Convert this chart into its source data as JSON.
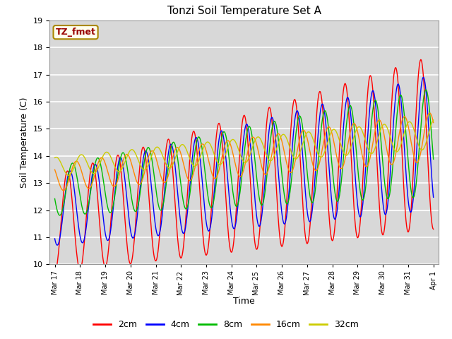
{
  "title": "Tonzi Soil Temperature Set A",
  "xlabel": "Time",
  "ylabel": "Soil Temperature (C)",
  "ylim": [
    10.0,
    19.0
  ],
  "yticks": [
    10.0,
    11.0,
    12.0,
    13.0,
    14.0,
    15.0,
    16.0,
    17.0,
    18.0,
    19.0
  ],
  "series_labels": [
    "2cm",
    "4cm",
    "8cm",
    "16cm",
    "32cm"
  ],
  "series_colors": [
    "#ff0000",
    "#0000ff",
    "#00bb00",
    "#ff8800",
    "#cccc00"
  ],
  "annotation_text": "TZ_fmet",
  "annotation_color": "#990000",
  "annotation_bg": "#ffffee",
  "annotation_border": "#aa8800",
  "background_color": "#d8d8d8",
  "grid_color": "#ffffff",
  "xtick_labels": [
    "Mar 17",
    "Mar 18",
    "Mar 19",
    "Mar 20",
    "Mar 21",
    "Mar 22",
    "Mar 23",
    "Mar 24",
    "Mar 25",
    "Mar 26",
    "Mar 27",
    "Mar 28",
    "Mar 29",
    "Mar 30",
    "Mar 31",
    "Apr 1"
  ],
  "xtick_positions": [
    0,
    1,
    2,
    3,
    4,
    5,
    6,
    7,
    8,
    9,
    10,
    11,
    12,
    13,
    14,
    15
  ]
}
